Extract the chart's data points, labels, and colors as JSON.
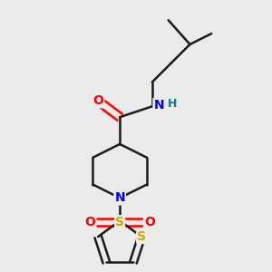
{
  "background_color": "#ebebeb",
  "bond_color": "#1a1a1a",
  "atom_colors": {
    "O": "#ff0000",
    "N": "#0000ff",
    "S_sulfonyl": "#ccaa00",
    "S_thiophene": "#ccaa00",
    "H": "#008080",
    "C": "#1a1a1a"
  },
  "figsize": [
    3.0,
    3.0
  ],
  "dpi": 100
}
